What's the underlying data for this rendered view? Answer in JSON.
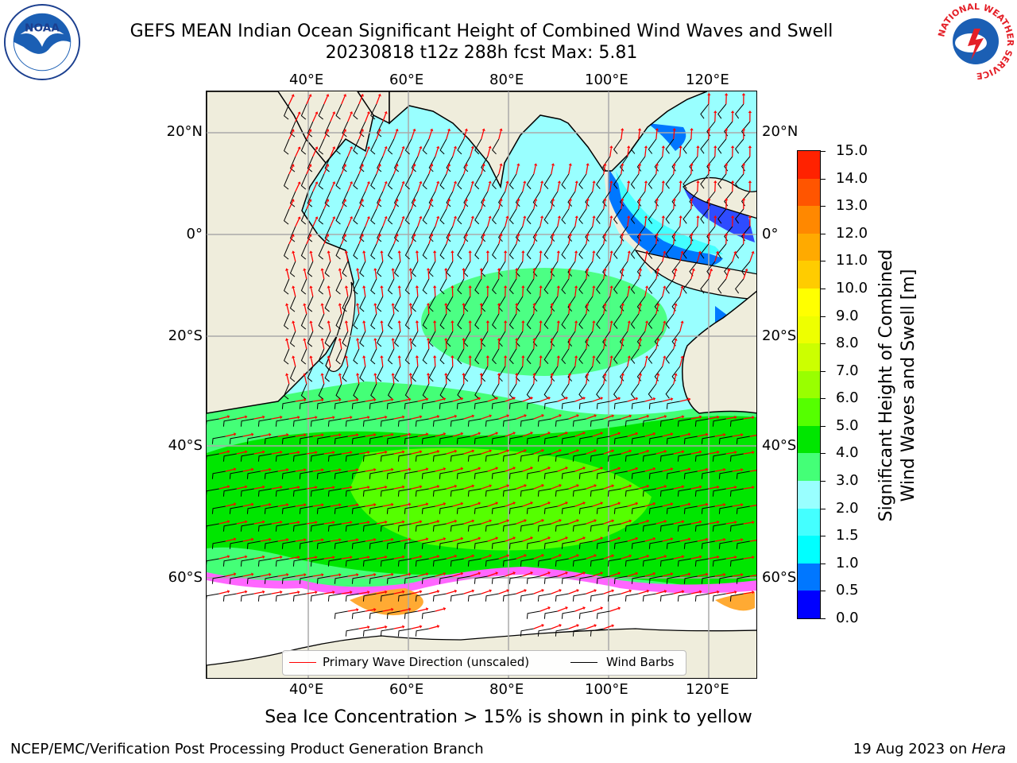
{
  "header": {
    "title_line1": "GEFS MEAN Indian Ocean Significant Height of Combined Wind Waves and Swell",
    "title_line2": "20230818 t12z 288h fcst   Max: 5.81"
  },
  "logos": {
    "left": "NOAA",
    "right": "NATIONAL WEATHER SERVICE"
  },
  "map": {
    "lon_ticks": [
      "40°E",
      "60°E",
      "80°E",
      "100°E",
      "120°E"
    ],
    "lat_ticks": [
      "20°N",
      "0°",
      "20°S",
      "40°S",
      "60°S"
    ],
    "legend": {
      "wave_direction": "Primary Wave Direction (unscaled)",
      "wind_barbs": "Wind Barbs",
      "wave_color": "#ff0000",
      "barb_color": "#000000"
    },
    "colors": {
      "land": "#efeddc",
      "sea_ice": "#ffffff",
      "ice_edge": [
        "#ff66ff",
        "#ffaa33",
        "#ffff66"
      ]
    }
  },
  "colorbar": {
    "label_line1": "Significant Height of Combined",
    "label_line2": "Wind Waves and Swell [m]",
    "ticks": [
      "0.0",
      "0.5",
      "1.0",
      "1.5",
      "2.0",
      "3.0",
      "4.0",
      "5.0",
      "6.0",
      "7.0",
      "8.0",
      "9.0",
      "10.0",
      "11.0",
      "12.0",
      "13.0",
      "14.0",
      "15.0"
    ],
    "colors": [
      "#0000ff",
      "#0077ff",
      "#00ffff",
      "#44ffff",
      "#99ffff",
      "#44ff77",
      "#00e600",
      "#55ff00",
      "#99ff00",
      "#ccff00",
      "#eeff00",
      "#ffff00",
      "#ffcc00",
      "#ffaa00",
      "#ff8800",
      "#ff5500",
      "#ff2200"
    ]
  },
  "footer": {
    "note": "Sea Ice Concentration > 15% is shown in pink to yellow",
    "credit": "NCEP/EMC/Verification Post Processing Product Generation Branch",
    "date": "19 Aug 2023 on ",
    "host": "Hera"
  }
}
